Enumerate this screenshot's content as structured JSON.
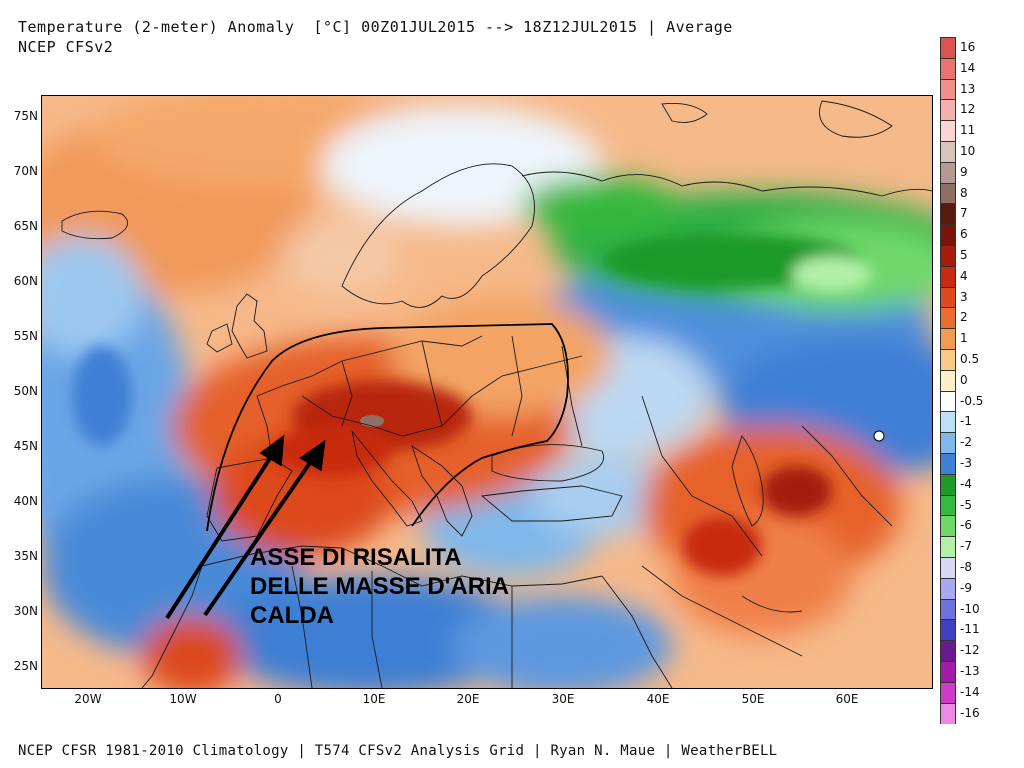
{
  "header": {
    "title": "Temperature (2-meter) Anomaly  [°C] 00Z01JUL2015 --> 18Z12JUL2015 | Average",
    "model": "NCEP CFSv2"
  },
  "footer": {
    "credit": "NCEP CFSR 1981-2010 Climatology | T574 CFSv2 Analysis Grid | Ryan N. Maue | WeatherBELL"
  },
  "axes": {
    "lat_labels": [
      "75N",
      "70N",
      "65N",
      "60N",
      "55N",
      "50N",
      "45N",
      "40N",
      "35N",
      "30N",
      "25N"
    ],
    "lon_labels": [
      "20W",
      "10W",
      "0",
      "10E",
      "20E",
      "30E",
      "40E",
      "50E",
      "60E"
    ]
  },
  "annotation": {
    "line1": "ASSE DI RISALITA",
    "line2": "DELLE MASSE D'ARIA",
    "line3": "CALDA"
  },
  "colorbar": {
    "levels": [
      {
        "label": "16",
        "color": "#d9534f"
      },
      {
        "label": "14",
        "color": "#e8736f"
      },
      {
        "label": "13",
        "color": "#f0908c"
      },
      {
        "label": "12",
        "color": "#f5b0ac"
      },
      {
        "label": "11",
        "color": "#fbd5d3"
      },
      {
        "label": "10",
        "color": "#d8c4be"
      },
      {
        "label": "9",
        "color": "#b49a92"
      },
      {
        "label": "8",
        "color": "#8f6f65"
      },
      {
        "label": "7",
        "color": "#5a1a10"
      },
      {
        "label": "6",
        "color": "#7a1408"
      },
      {
        "label": "5",
        "color": "#a41c0a"
      },
      {
        "label": "4",
        "color": "#c72a10"
      },
      {
        "label": "3",
        "color": "#dc4a1e"
      },
      {
        "label": "2",
        "color": "#ea6e30"
      },
      {
        "label": "1",
        "color": "#f39a55"
      },
      {
        "label": "0.5",
        "color": "#f9c98a"
      },
      {
        "label": "0",
        "color": "#fdf0c8"
      },
      {
        "label": "-0.5",
        "color": "#ffffff"
      },
      {
        "label": "-1",
        "color": "#bfe0f7"
      },
      {
        "label": "-2",
        "color": "#7fb8ea"
      },
      {
        "label": "-3",
        "color": "#3f7fd6"
      },
      {
        "label": "-4",
        "color": "#1d9a2b"
      },
      {
        "label": "-5",
        "color": "#35b83d"
      },
      {
        "label": "-6",
        "color": "#6ed86a"
      },
      {
        "label": "-7",
        "color": "#b2f0a8"
      },
      {
        "label": "-8",
        "color": "#d8d8f5"
      },
      {
        "label": "-9",
        "color": "#a8a8ee"
      },
      {
        "label": "-10",
        "color": "#7070dc"
      },
      {
        "label": "-11",
        "color": "#4040c0"
      },
      {
        "label": "-12",
        "color": "#6a1a8e"
      },
      {
        "label": "-13",
        "color": "#a21aa8"
      },
      {
        "label": "-14",
        "color": "#d13ac8"
      },
      {
        "label": "-16",
        "color": "#ea8ae2"
      }
    ]
  }
}
